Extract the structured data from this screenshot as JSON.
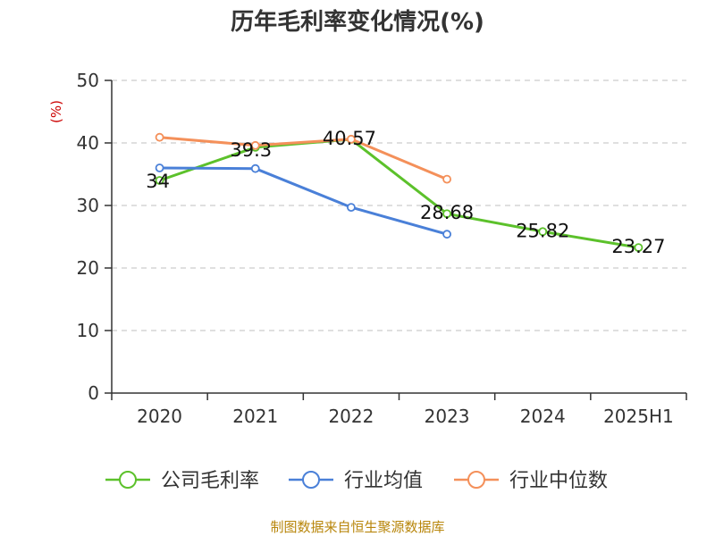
{
  "chart_data": {
    "type": "line",
    "title": "历年毛利率变化情况(%)",
    "ylabel": "(%)",
    "xlabel": "",
    "categories": [
      "2020",
      "2021",
      "2022",
      "2023",
      "2024",
      "2025H1"
    ],
    "ylim": [
      0,
      50
    ],
    "yticks": [
      0,
      10,
      20,
      30,
      40,
      50
    ],
    "grid": true,
    "legend_position": "bottom",
    "series": [
      {
        "name": "公司毛利率",
        "color": "#5cc12b",
        "values": [
          34,
          39.3,
          40.57,
          28.68,
          25.82,
          23.27
        ],
        "labels": [
          "34",
          "39.3",
          "40.57",
          "28.68",
          "25.82",
          "23.27"
        ]
      },
      {
        "name": "行业均值",
        "color": "#4a80d8",
        "values": [
          36,
          35.9,
          29.7,
          25.4,
          null,
          null
        ],
        "labels": null
      },
      {
        "name": "行业中位数",
        "color": "#f4905a",
        "values": [
          40.9,
          39.6,
          40.6,
          34.2,
          null,
          null
        ],
        "labels": null
      }
    ],
    "source": "制图数据来自恒生聚源数据库"
  }
}
